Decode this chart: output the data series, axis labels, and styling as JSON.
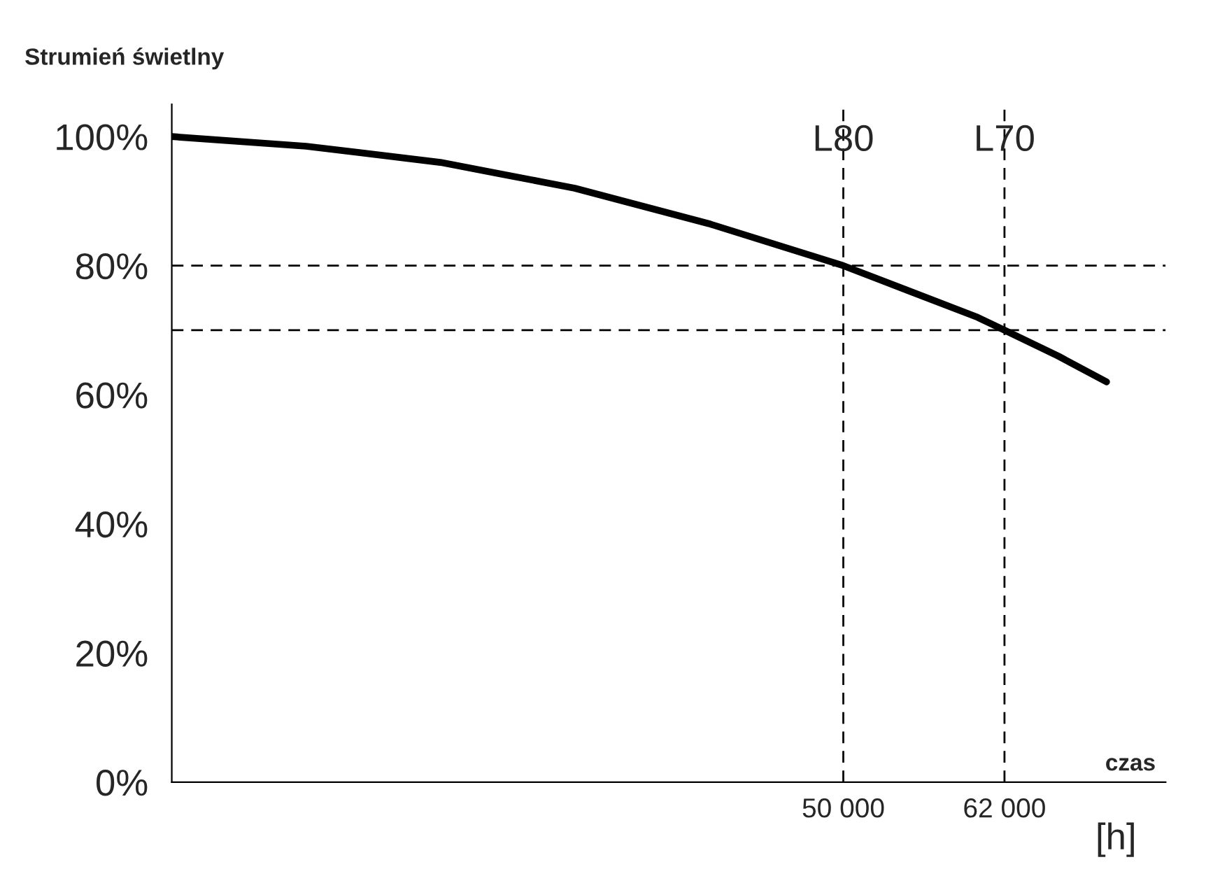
{
  "chart_data": {
    "type": "line",
    "ylabel": "Strumień świetlny",
    "xlabel": "czas",
    "x": [
      0,
      10000,
      20000,
      30000,
      40000,
      50000,
      55000,
      60000,
      62000,
      66000,
      69600
    ],
    "series": [
      {
        "color": "#000000",
        "values": [
          100,
          98.5,
          96,
          92,
          86.5,
          80,
          76,
          72,
          70,
          66,
          62
        ]
      }
    ],
    "xlim": [
      0,
      74000
    ],
    "ylim": [
      0,
      105
    ],
    "xticks": [
      {
        "value": 50000,
        "label": "50 000"
      },
      {
        "value": 62000,
        "label": "62 000"
      }
    ],
    "yticks": [
      {
        "value": 0,
        "label": "0%"
      },
      {
        "value": 20,
        "label": "20%"
      },
      {
        "value": 40,
        "label": "40%"
      },
      {
        "value": 60,
        "label": "60%"
      },
      {
        "value": 80,
        "label": "80%"
      },
      {
        "value": 100,
        "label": "100%"
      }
    ],
    "ref_lines": [
      {
        "axis": "x",
        "value": 50000,
        "label": "L80",
        "color": "#000000",
        "line_style": "dashed"
      },
      {
        "axis": "x",
        "value": 62000,
        "label": "L70",
        "color": "#000000",
        "line_style": "dashed"
      },
      {
        "axis": "y",
        "value": 80,
        "color": "#000000",
        "line_style": "dashed"
      },
      {
        "axis": "y",
        "value": 70,
        "color": "#000000",
        "line_style": "dashed"
      }
    ],
    "annotations": [
      "[h]"
    ],
    "grid": false,
    "legend": false,
    "marker": "none",
    "line_style": "solid"
  }
}
